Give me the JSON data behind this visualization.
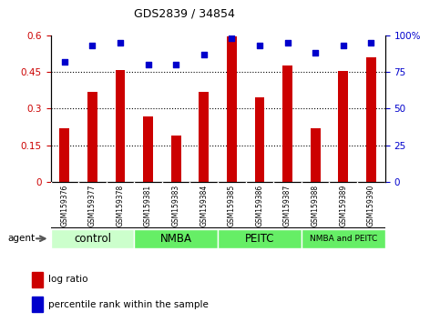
{
  "title": "GDS2839 / 34854",
  "samples": [
    "GSM159376",
    "GSM159377",
    "GSM159378",
    "GSM159381",
    "GSM159383",
    "GSM159384",
    "GSM159385",
    "GSM159386",
    "GSM159387",
    "GSM159388",
    "GSM159389",
    "GSM159390"
  ],
  "log_ratio": [
    0.22,
    0.37,
    0.46,
    0.27,
    0.19,
    0.37,
    0.595,
    0.345,
    0.475,
    0.22,
    0.455,
    0.51
  ],
  "percentile_rank": [
    82,
    93,
    95,
    80,
    80,
    87,
    98,
    93,
    95,
    88,
    93,
    95
  ],
  "bar_color": "#cc0000",
  "dot_color": "#0000cc",
  "ylim_left": [
    0,
    0.6
  ],
  "ylim_right": [
    0,
    100
  ],
  "yticks_left": [
    0,
    0.15,
    0.3,
    0.45,
    0.6
  ],
  "yticks_right": [
    0,
    25,
    50,
    75,
    100
  ],
  "ytick_labels_left": [
    "0",
    "0.15",
    "0.3",
    "0.45",
    "0.6"
  ],
  "ytick_labels_right": [
    "0",
    "25",
    "50",
    "75",
    "100%"
  ],
  "grid_values": [
    0.15,
    0.3,
    0.45
  ],
  "groups": [
    {
      "label": "control",
      "start": 0,
      "end": 3,
      "color": "#ccffcc"
    },
    {
      "label": "NMBA",
      "start": 3,
      "end": 6,
      "color": "#66ee66"
    },
    {
      "label": "PEITC",
      "start": 6,
      "end": 9,
      "color": "#66ee66"
    },
    {
      "label": "NMBA and PEITC",
      "start": 9,
      "end": 12,
      "color": "#66ee66"
    }
  ],
  "agent_label": "agent",
  "legend_items": [
    {
      "label": "log ratio",
      "color": "#cc0000"
    },
    {
      "label": "percentile rank within the sample",
      "color": "#0000cc"
    }
  ],
  "bar_width": 0.35,
  "tick_label_color_left": "#cc0000",
  "tick_label_color_right": "#0000cc",
  "background_color": "#ffffff",
  "plot_bg_color": "#ffffff"
}
